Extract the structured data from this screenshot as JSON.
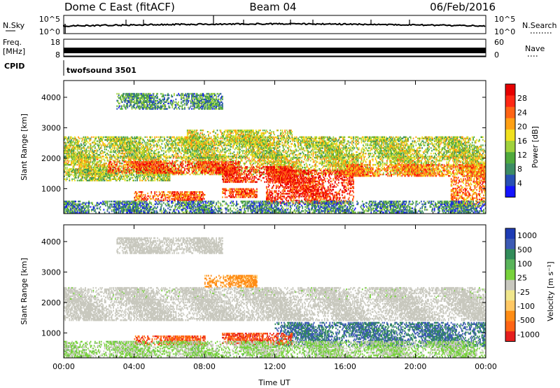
{
  "header": {
    "station": "Dome C East (fitACF)",
    "beam": "Beam 04",
    "date": "06/Feb/2016"
  },
  "nsky_panel": {
    "left_label": "N.Sky",
    "right_label": "N.Search",
    "left_ticks": [
      "10^5",
      "10^0"
    ],
    "right_ticks": [
      "10^5",
      "10^0"
    ]
  },
  "freq_panel": {
    "left_label_1": "Freq.",
    "left_label_2": "[MHz]",
    "right_label": "Nave",
    "left_ticks": [
      "18",
      "8"
    ],
    "right_ticks": [
      "60",
      "0"
    ]
  },
  "cpid": {
    "label": "CPID",
    "program": "twofsound 3501"
  },
  "chart_data": [
    {
      "type": "heatmap",
      "name": "power",
      "ylabel": "Slant Range [km]",
      "ylim": [
        180,
        4550
      ],
      "yticks": [
        1000,
        2000,
        3000,
        4000
      ],
      "xlim": [
        0,
        24
      ],
      "colorbar_label": "Power [dB]",
      "colorbar_ticks": [
        4,
        8,
        12,
        16,
        20,
        24,
        28
      ],
      "colorbar_colors": [
        "#1414ff",
        "#2850b4",
        "#3c8c64",
        "#50aa3c",
        "#a0d23c",
        "#f0e01e",
        "#ffa014",
        "#ff6414",
        "#ff2814",
        "#e60000"
      ],
      "regions": [
        {
          "t0": 0.0,
          "t1": 24.0,
          "r0": 1450,
          "r1": 2050,
          "mean": 17
        },
        {
          "t0": 0.0,
          "t1": 6.0,
          "r0": 1250,
          "r1": 1650,
          "mean": 14
        },
        {
          "t0": 2.5,
          "t1": 10.0,
          "r0": 1500,
          "r1": 1900,
          "mean": 25
        },
        {
          "t0": 9.0,
          "t1": 13.0,
          "r0": 1200,
          "r1": 1700,
          "mean": 26
        },
        {
          "t0": 11.5,
          "t1": 16.5,
          "r0": 500,
          "r1": 1600,
          "mean": 26
        },
        {
          "t0": 16.0,
          "t1": 24.0,
          "r0": 1400,
          "r1": 1800,
          "mean": 22
        },
        {
          "t0": 4.0,
          "t1": 8.0,
          "r0": 600,
          "r1": 900,
          "mean": 24
        },
        {
          "t0": 9.0,
          "t1": 11.0,
          "r0": 700,
          "r1": 1000,
          "mean": 24
        },
        {
          "t0": 22.0,
          "t1": 24.0,
          "r0": 400,
          "r1": 1400,
          "mean": 22
        },
        {
          "t0": 0.0,
          "t1": 24.0,
          "r0": 200,
          "r1": 600,
          "mean": 9
        },
        {
          "t0": 0.0,
          "t1": 24.0,
          "r0": 2000,
          "r1": 2700,
          "mean": 15
        },
        {
          "t0": 7.0,
          "t1": 13.0,
          "r0": 2400,
          "r1": 2900,
          "mean": 16
        },
        {
          "t0": 3.0,
          "t1": 9.0,
          "r0": 3600,
          "r1": 4100,
          "mean": 10
        }
      ]
    },
    {
      "type": "heatmap",
      "name": "velocity",
      "ylabel": "Slant Range [km]",
      "xlabel": "Time UT",
      "ylim": [
        180,
        4550
      ],
      "yticks": [
        1000,
        2000,
        3000,
        4000
      ],
      "xlim": [
        0,
        24
      ],
      "xticks": [
        "00:00",
        "04:00",
        "08:00",
        "12:00",
        "16:00",
        "20:00",
        "00:00"
      ],
      "colorbar_label": "Velocity [m s⁻¹]",
      "colorbar_ticks": [
        "1000",
        "500",
        "100",
        "25",
        "-25",
        "-100",
        "-500",
        "-1000"
      ],
      "colorbar_colors": [
        "#1e3cb4",
        "#3c5ab4",
        "#328c5a",
        "#5ab45a",
        "#78d23c",
        "#c8c8be",
        "#f0e68c",
        "#ffc864",
        "#ff8c14",
        "#ff6414",
        "#e61e1e"
      ],
      "regions": [
        {
          "t0": 0.0,
          "t1": 24.0,
          "r0": 1400,
          "r1": 2100,
          "mean": 0
        },
        {
          "t0": 0.0,
          "t1": 24.0,
          "r0": 2100,
          "r1": 2500,
          "mean": 5
        },
        {
          "t0": 12.0,
          "t1": 24.0,
          "r0": 550,
          "r1": 1350,
          "mean": 250
        },
        {
          "t0": 4.0,
          "t1": 8.0,
          "r0": 600,
          "r1": 900,
          "mean": -400
        },
        {
          "t0": 9.0,
          "t1": 13.0,
          "r0": 600,
          "r1": 1000,
          "mean": -450
        },
        {
          "t0": 8.0,
          "t1": 11.0,
          "r0": 2500,
          "r1": 2900,
          "mean": -150
        },
        {
          "t0": 0.0,
          "t1": 24.0,
          "r0": 200,
          "r1": 700,
          "mean": 30
        },
        {
          "t0": 3.0,
          "t1": 9.0,
          "r0": 3600,
          "r1": 4100,
          "mean": 0
        }
      ]
    }
  ]
}
